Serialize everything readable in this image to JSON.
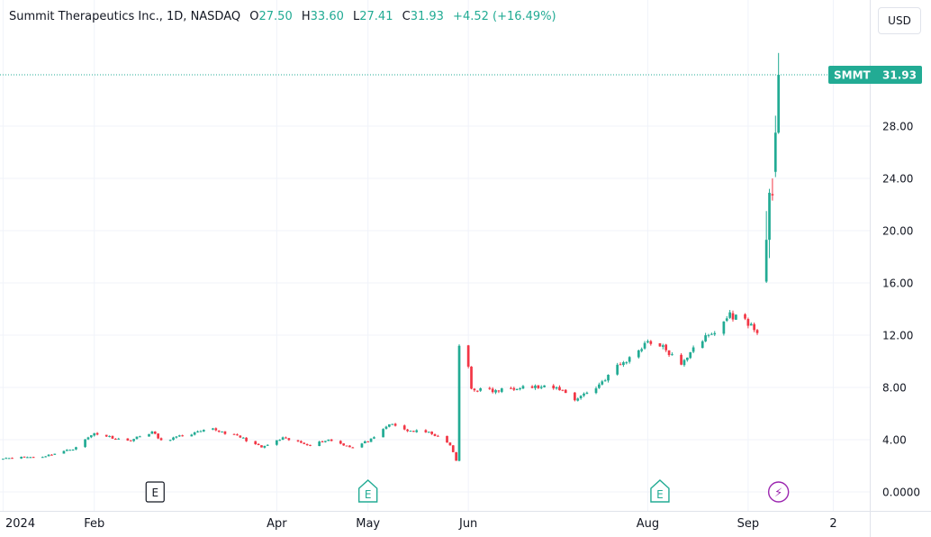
{
  "legend": {
    "name": "Summit Therapeutics Inc., 1D, NASDAQ",
    "o_label": "O",
    "o_value": "27.50",
    "h_label": "H",
    "h_value": "33.60",
    "l_label": "L",
    "l_value": "27.41",
    "c_label": "C",
    "c_value": "31.93",
    "change": "+4.52 (+16.49%)"
  },
  "currency_button": "USD",
  "colors": {
    "up": "#22ab94",
    "down": "#f23645",
    "grid": "#f0f3fa",
    "event_neutral": "#131722",
    "event_earnings": "#22ab94",
    "event_dividend": "#9c27b0"
  },
  "chart_data": {
    "type": "candlestick",
    "symbol": "SMMT",
    "last_price": 31.93,
    "last_price_label": "31.93",
    "y_ticks": [
      0,
      4,
      8,
      12,
      16,
      20,
      24,
      28
    ],
    "y_tick_labels": [
      "0.0000",
      "4.00",
      "8.00",
      "12.00",
      "16.00",
      "20.00",
      "24.00",
      "28.00"
    ],
    "ylim": [
      -1,
      34.5
    ],
    "x_ticks": [
      {
        "label": "2024",
        "date": "2024-01-02"
      },
      {
        "label": "Feb",
        "date": "2024-02-01"
      },
      {
        "label": "Apr",
        "date": "2024-04-01"
      },
      {
        "label": "May",
        "date": "2024-05-01"
      },
      {
        "label": "Jun",
        "date": "2024-06-03"
      },
      {
        "label": "Aug",
        "date": "2024-08-01"
      },
      {
        "label": "Sep",
        "date": "2024-09-03"
      },
      {
        "label": "2",
        "date": "2024-10-01"
      }
    ],
    "xlim": [
      "2024-01-01",
      "2024-10-13"
    ],
    "events": [
      {
        "label": "E",
        "date": "2024-02-21",
        "kind": "neutral"
      },
      {
        "label": "E",
        "date": "2024-05-01",
        "kind": "earnings"
      },
      {
        "label": "E",
        "date": "2024-08-05",
        "kind": "earnings"
      },
      {
        "label": "⚡",
        "date": "2024-09-13",
        "kind": "dividend"
      }
    ],
    "anchors": [
      [
        "2024-01-02",
        2.6
      ],
      [
        "2024-01-15",
        2.7
      ],
      [
        "2024-01-25",
        3.3
      ],
      [
        "2024-02-01",
        4.5
      ],
      [
        "2024-02-12",
        3.9
      ],
      [
        "2024-02-20",
        4.6
      ],
      [
        "2024-02-23",
        3.9
      ],
      [
        "2024-03-01",
        4.3
      ],
      [
        "2024-03-11",
        4.8
      ],
      [
        "2024-03-20",
        4.2
      ],
      [
        "2024-03-27",
        3.4
      ],
      [
        "2024-04-03",
        4.1
      ],
      [
        "2024-04-12",
        3.6
      ],
      [
        "2024-04-18",
        4.0
      ],
      [
        "2024-04-26",
        3.4
      ],
      [
        "2024-05-03",
        4.1
      ],
      [
        "2024-05-08",
        5.2
      ],
      [
        "2024-05-14",
        4.7
      ],
      [
        "2024-05-22",
        4.5
      ],
      [
        "2024-05-28",
        3.6
      ],
      [
        "2024-05-30",
        2.4
      ],
      [
        "2024-05-31",
        11.0
      ],
      [
        "2024-06-03",
        9.6
      ],
      [
        "2024-06-04",
        7.9
      ],
      [
        "2024-06-12",
        7.7
      ],
      [
        "2024-06-20",
        8.1
      ],
      [
        "2024-07-03",
        7.9
      ],
      [
        "2024-07-08",
        7.1
      ],
      [
        "2024-07-15",
        8.0
      ],
      [
        "2024-07-22",
        9.6
      ],
      [
        "2024-07-26",
        10.2
      ],
      [
        "2024-08-01",
        11.6
      ],
      [
        "2024-08-07",
        10.9
      ],
      [
        "2024-08-12",
        9.6
      ],
      [
        "2024-08-16",
        11.2
      ],
      [
        "2024-08-23",
        12.2
      ],
      [
        "2024-08-28",
        13.6
      ],
      [
        "2024-09-03",
        13.0
      ],
      [
        "2024-09-06",
        12.1
      ]
    ],
    "final_candles": [
      {
        "date": "2024-09-09",
        "o": 16.1,
        "h": 21.5,
        "l": 16.0,
        "c": 19.3
      },
      {
        "date": "2024-09-10",
        "o": 19.3,
        "h": 23.2,
        "l": 17.9,
        "c": 22.9
      },
      {
        "date": "2024-09-11",
        "o": 22.8,
        "h": 24.0,
        "l": 22.3,
        "c": 22.7
      },
      {
        "date": "2024-09-12",
        "o": 24.5,
        "h": 28.8,
        "l": 24.1,
        "c": 27.5
      },
      {
        "date": "2024-09-13",
        "o": 27.5,
        "h": 33.6,
        "l": 27.41,
        "c": 31.93
      }
    ]
  }
}
